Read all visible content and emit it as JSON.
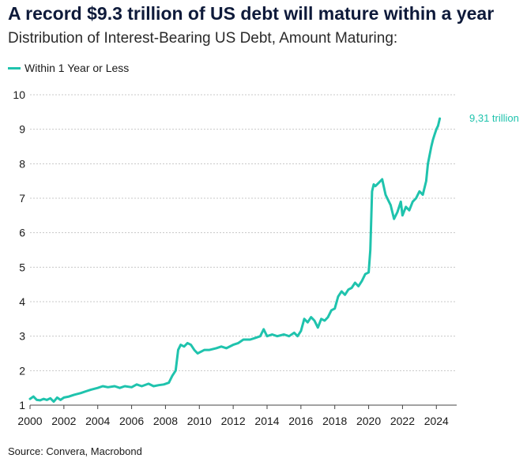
{
  "header": {
    "title": "A record $9.3 trillion of US debt will mature within a year",
    "subtitle": "Distribution of Interest-Bearing US Debt, Amount Maturing:"
  },
  "legend": {
    "label": "Within 1 Year or Less"
  },
  "footer": {
    "source": "Source: Convera, Macrobond"
  },
  "colors": {
    "series": "#1fc3ad",
    "grid": "#c8c8c8",
    "axis": "#444444"
  },
  "chart_data": {
    "type": "line",
    "title": "A record $9.3 trillion of US debt will mature within a year",
    "subtitle": "Distribution of Interest-Bearing US Debt, Amount Maturing:",
    "xlabel": "",
    "ylabel": "",
    "xlim": [
      2000,
      2025.2
    ],
    "ylim": [
      1,
      10
    ],
    "x_ticks": [
      2000,
      2002,
      2004,
      2006,
      2008,
      2010,
      2012,
      2014,
      2016,
      2018,
      2020,
      2022,
      2024
    ],
    "x_tick_labels": [
      "2000",
      "2002",
      "2004",
      "2006",
      "2008",
      "2010",
      "2012",
      "2014",
      "2016",
      "2018",
      "2020",
      "2022",
      "2024"
    ],
    "y_ticks": [
      1,
      2,
      3,
      4,
      5,
      6,
      7,
      8,
      9,
      10
    ],
    "y_tick_labels": [
      "1",
      "2",
      "3",
      "4",
      "5",
      "6",
      "7",
      "8",
      "9",
      "10"
    ],
    "grid": true,
    "legend_position": "top-left",
    "end_label": "9,31 trillion",
    "series": [
      {
        "name": "Within 1 Year or Less",
        "x": [
          2000.0,
          2000.2,
          2000.4,
          2000.6,
          2000.8,
          2001.0,
          2001.2,
          2001.4,
          2001.6,
          2001.8,
          2002.0,
          2002.3,
          2002.6,
          2003.0,
          2003.3,
          2003.6,
          2004.0,
          2004.3,
          2004.6,
          2005.0,
          2005.3,
          2005.6,
          2006.0,
          2006.3,
          2006.6,
          2007.0,
          2007.3,
          2007.6,
          2007.9,
          2008.2,
          2008.4,
          2008.6,
          2008.75,
          2008.9,
          2009.1,
          2009.3,
          2009.5,
          2009.7,
          2009.9,
          2010.1,
          2010.3,
          2010.6,
          2011.0,
          2011.3,
          2011.6,
          2012.0,
          2012.3,
          2012.6,
          2013.0,
          2013.3,
          2013.6,
          2013.8,
          2014.0,
          2014.3,
          2014.6,
          2015.0,
          2015.3,
          2015.6,
          2015.8,
          2016.0,
          2016.2,
          2016.4,
          2016.6,
          2016.8,
          2017.0,
          2017.2,
          2017.4,
          2017.6,
          2017.8,
          2018.0,
          2018.2,
          2018.4,
          2018.6,
          2018.8,
          2019.0,
          2019.2,
          2019.4,
          2019.6,
          2019.8,
          2020.0,
          2020.1,
          2020.2,
          2020.3,
          2020.4,
          2020.6,
          2020.8,
          2021.0,
          2021.1,
          2021.3,
          2021.5,
          2021.7,
          2021.9,
          2022.0,
          2022.2,
          2022.4,
          2022.6,
          2022.8,
          2023.0,
          2023.2,
          2023.4,
          2023.5,
          2023.7,
          2023.8,
          2023.9,
          2024.0,
          2024.1,
          2024.2
        ],
        "values": [
          1.18,
          1.25,
          1.15,
          1.14,
          1.18,
          1.15,
          1.2,
          1.1,
          1.22,
          1.15,
          1.22,
          1.25,
          1.3,
          1.35,
          1.4,
          1.45,
          1.5,
          1.55,
          1.52,
          1.55,
          1.5,
          1.55,
          1.52,
          1.6,
          1.55,
          1.62,
          1.55,
          1.58,
          1.6,
          1.65,
          1.85,
          2.0,
          2.6,
          2.75,
          2.7,
          2.8,
          2.75,
          2.6,
          2.5,
          2.55,
          2.6,
          2.6,
          2.65,
          2.7,
          2.65,
          2.75,
          2.8,
          2.9,
          2.9,
          2.95,
          3.0,
          3.2,
          3.0,
          3.05,
          3.0,
          3.05,
          3.0,
          3.1,
          3.0,
          3.15,
          3.5,
          3.4,
          3.55,
          3.45,
          3.25,
          3.5,
          3.45,
          3.55,
          3.75,
          3.8,
          4.15,
          4.3,
          4.2,
          4.35,
          4.4,
          4.55,
          4.45,
          4.6,
          4.8,
          4.85,
          5.5,
          7.2,
          7.4,
          7.35,
          7.45,
          7.55,
          7.1,
          7.0,
          6.8,
          6.4,
          6.6,
          6.9,
          6.5,
          6.75,
          6.65,
          6.9,
          7.0,
          7.2,
          7.1,
          7.5,
          8.0,
          8.5,
          8.7,
          8.85,
          9.0,
          9.1,
          9.31
        ]
      }
    ]
  }
}
